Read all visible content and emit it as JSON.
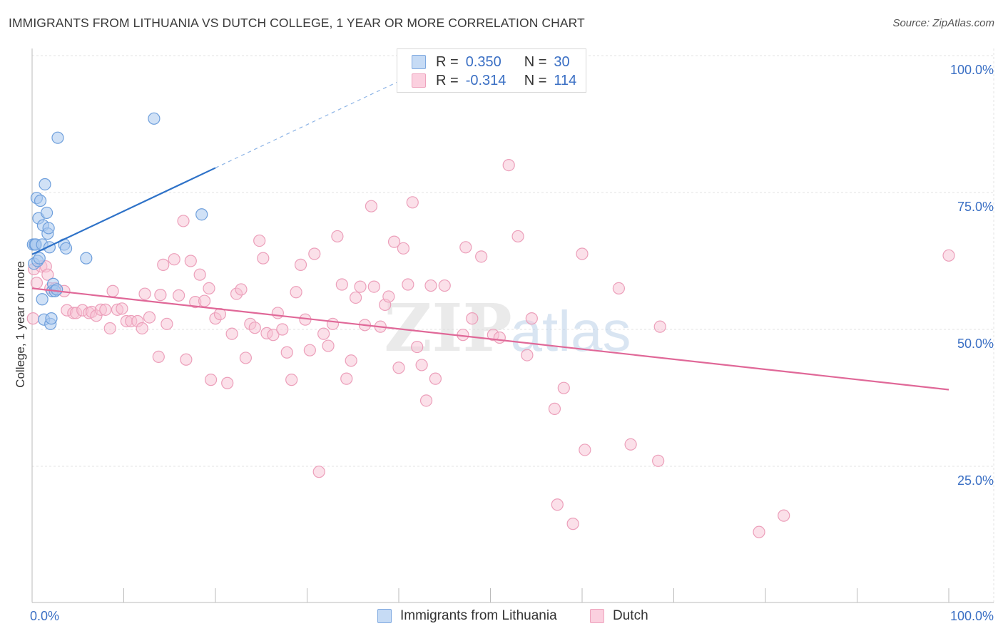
{
  "chart_data": {
    "type": "scatter",
    "title": "IMMIGRANTS FROM LITHUANIA VS DUTCH COLLEGE, 1 YEAR OR MORE CORRELATION CHART",
    "source": "Source: ZipAtlas.com",
    "xlabel": "",
    "ylabel": "College, 1 year or more",
    "xlim": [
      0,
      100
    ],
    "ylim": [
      0,
      105
    ],
    "x_tick_labels": [
      {
        "value": 0,
        "label": "0.0%"
      },
      {
        "value": 100,
        "label": "100.0%"
      }
    ],
    "y_tick_labels": [
      {
        "value": 25,
        "label": "25.0%"
      },
      {
        "value": 50,
        "label": "50.0%"
      },
      {
        "value": 75,
        "label": "75.0%"
      },
      {
        "value": 100,
        "label": "100.0%"
      }
    ],
    "grid": true,
    "legend_position": "top-center",
    "watermark": "ZIPatlas",
    "series": [
      {
        "name": "Immigrants from Lithuania",
        "color": "#8fb8ea",
        "line_color": "#2e72c8",
        "R": "0.350",
        "N": "30",
        "trend": {
          "x0": 0,
          "y0": 63.7,
          "x1": 20,
          "y1": 79.5,
          "dashed_to_x": 40,
          "dashed_to_y": 95.3
        },
        "points": [
          [
            0.1,
            65.5
          ],
          [
            0.2,
            62.0
          ],
          [
            0.3,
            65.5
          ],
          [
            0.4,
            65.5
          ],
          [
            0.5,
            74.0
          ],
          [
            0.6,
            62.5
          ],
          [
            0.7,
            70.3
          ],
          [
            0.8,
            63.0
          ],
          [
            0.9,
            73.5
          ],
          [
            1.1,
            65.5
          ],
          [
            1.1,
            55.5
          ],
          [
            1.2,
            69.0
          ],
          [
            1.3,
            51.8
          ],
          [
            1.4,
            76.5
          ],
          [
            1.6,
            71.3
          ],
          [
            1.7,
            67.5
          ],
          [
            1.8,
            68.5
          ],
          [
            1.9,
            65.0
          ],
          [
            2.0,
            51.0
          ],
          [
            2.1,
            52.0
          ],
          [
            2.2,
            57.0
          ],
          [
            2.3,
            58.3
          ],
          [
            2.5,
            57.0
          ],
          [
            2.7,
            57.3
          ],
          [
            2.8,
            85.0
          ],
          [
            3.5,
            65.5
          ],
          [
            3.7,
            64.8
          ],
          [
            5.9,
            63.0
          ],
          [
            13.3,
            88.5
          ],
          [
            18.5,
            71.0
          ]
        ]
      },
      {
        "name": "Dutch",
        "color": "#f2a9c0",
        "line_color": "#e06898",
        "R": "-0.314",
        "N": "114",
        "trend": {
          "x0": 0,
          "y0": 57.5,
          "x1": 100,
          "y1": 39.0
        },
        "points": [
          [
            0.1,
            52.0
          ],
          [
            0.2,
            61.0
          ],
          [
            0.5,
            58.5
          ],
          [
            1.0,
            61.5
          ],
          [
            1.5,
            61.5
          ],
          [
            1.7,
            60.0
          ],
          [
            2.0,
            57.5
          ],
          [
            2.5,
            57.5
          ],
          [
            3.5,
            57.0
          ],
          [
            3.8,
            53.5
          ],
          [
            4.5,
            53.0
          ],
          [
            4.8,
            53.0
          ],
          [
            5.5,
            53.5
          ],
          [
            6.2,
            53.0
          ],
          [
            6.5,
            53.2
          ],
          [
            7.0,
            52.5
          ],
          [
            7.5,
            53.6
          ],
          [
            8.0,
            53.6
          ],
          [
            8.5,
            50.2
          ],
          [
            8.8,
            57.0
          ],
          [
            9.3,
            53.6
          ],
          [
            9.8,
            53.8
          ],
          [
            10.3,
            51.5
          ],
          [
            10.8,
            51.5
          ],
          [
            11.5,
            51.5
          ],
          [
            12.0,
            50.2
          ],
          [
            12.3,
            56.5
          ],
          [
            12.8,
            52.2
          ],
          [
            13.8,
            45.0
          ],
          [
            14.0,
            56.3
          ],
          [
            14.3,
            61.8
          ],
          [
            14.7,
            51.0
          ],
          [
            15.5,
            62.8
          ],
          [
            16.0,
            56.2
          ],
          [
            16.5,
            69.8
          ],
          [
            16.8,
            44.5
          ],
          [
            17.3,
            62.5
          ],
          [
            17.8,
            55.0
          ],
          [
            18.3,
            60.0
          ],
          [
            18.8,
            55.2
          ],
          [
            19.3,
            57.5
          ],
          [
            19.5,
            40.8
          ],
          [
            20.0,
            52.0
          ],
          [
            20.5,
            52.8
          ],
          [
            21.3,
            40.2
          ],
          [
            21.8,
            49.2
          ],
          [
            22.3,
            56.5
          ],
          [
            22.8,
            57.3
          ],
          [
            23.3,
            44.8
          ],
          [
            23.8,
            51.0
          ],
          [
            24.3,
            50.3
          ],
          [
            24.8,
            66.2
          ],
          [
            25.2,
            63.0
          ],
          [
            25.6,
            49.3
          ],
          [
            26.3,
            49.0
          ],
          [
            26.8,
            53.0
          ],
          [
            27.3,
            50.0
          ],
          [
            27.8,
            45.8
          ],
          [
            28.3,
            40.8
          ],
          [
            28.8,
            56.8
          ],
          [
            29.3,
            61.8
          ],
          [
            29.8,
            51.8
          ],
          [
            30.3,
            46.2
          ],
          [
            30.8,
            63.8
          ],
          [
            31.3,
            24.0
          ],
          [
            31.8,
            49.2
          ],
          [
            32.3,
            47.0
          ],
          [
            32.8,
            51.0
          ],
          [
            33.3,
            67.0
          ],
          [
            33.8,
            58.2
          ],
          [
            34.3,
            41.0
          ],
          [
            34.8,
            44.3
          ],
          [
            35.3,
            55.8
          ],
          [
            35.8,
            57.8
          ],
          [
            36.3,
            50.8
          ],
          [
            37.0,
            72.5
          ],
          [
            37.3,
            57.8
          ],
          [
            38.0,
            50.5
          ],
          [
            38.5,
            54.5
          ],
          [
            38.9,
            56.0
          ],
          [
            39.5,
            66.0
          ],
          [
            40.0,
            43.0
          ],
          [
            40.5,
            64.8
          ],
          [
            41.0,
            58.2
          ],
          [
            41.5,
            73.2
          ],
          [
            42.0,
            46.8
          ],
          [
            42.5,
            43.5
          ],
          [
            43.0,
            37.0
          ],
          [
            43.5,
            58.0
          ],
          [
            44.0,
            41.0
          ],
          [
            45.0,
            58.0
          ],
          [
            47.0,
            49.0
          ],
          [
            47.3,
            65.0
          ],
          [
            48.0,
            52.0
          ],
          [
            49.0,
            63.3
          ],
          [
            50.3,
            49.0
          ],
          [
            51.0,
            48.5
          ],
          [
            52.0,
            80.0
          ],
          [
            53.0,
            67.0
          ],
          [
            54.0,
            45.3
          ],
          [
            54.5,
            52.0
          ],
          [
            57.0,
            35.5
          ],
          [
            58.0,
            39.3
          ],
          [
            60.0,
            63.8
          ],
          [
            64.0,
            57.5
          ],
          [
            65.3,
            29.0
          ],
          [
            57.3,
            18.0
          ],
          [
            60.3,
            28.0
          ],
          [
            68.3,
            26.0
          ],
          [
            59.0,
            14.5
          ],
          [
            79.3,
            13.0
          ],
          [
            82.0,
            16.0
          ],
          [
            100.0,
            63.5
          ],
          [
            68.5,
            50.5
          ]
        ]
      }
    ]
  },
  "legend_top": {
    "rows": [
      {
        "r_label": "R =",
        "r_value": "0.350",
        "n_label": "N =",
        "n_value": "30"
      },
      {
        "r_label": "R =",
        "r_value": "-0.314",
        "n_label": "N =",
        "n_value": "114"
      }
    ]
  },
  "legend_bottom": {
    "items": [
      "Immigrants from Lithuania",
      "Dutch"
    ]
  }
}
